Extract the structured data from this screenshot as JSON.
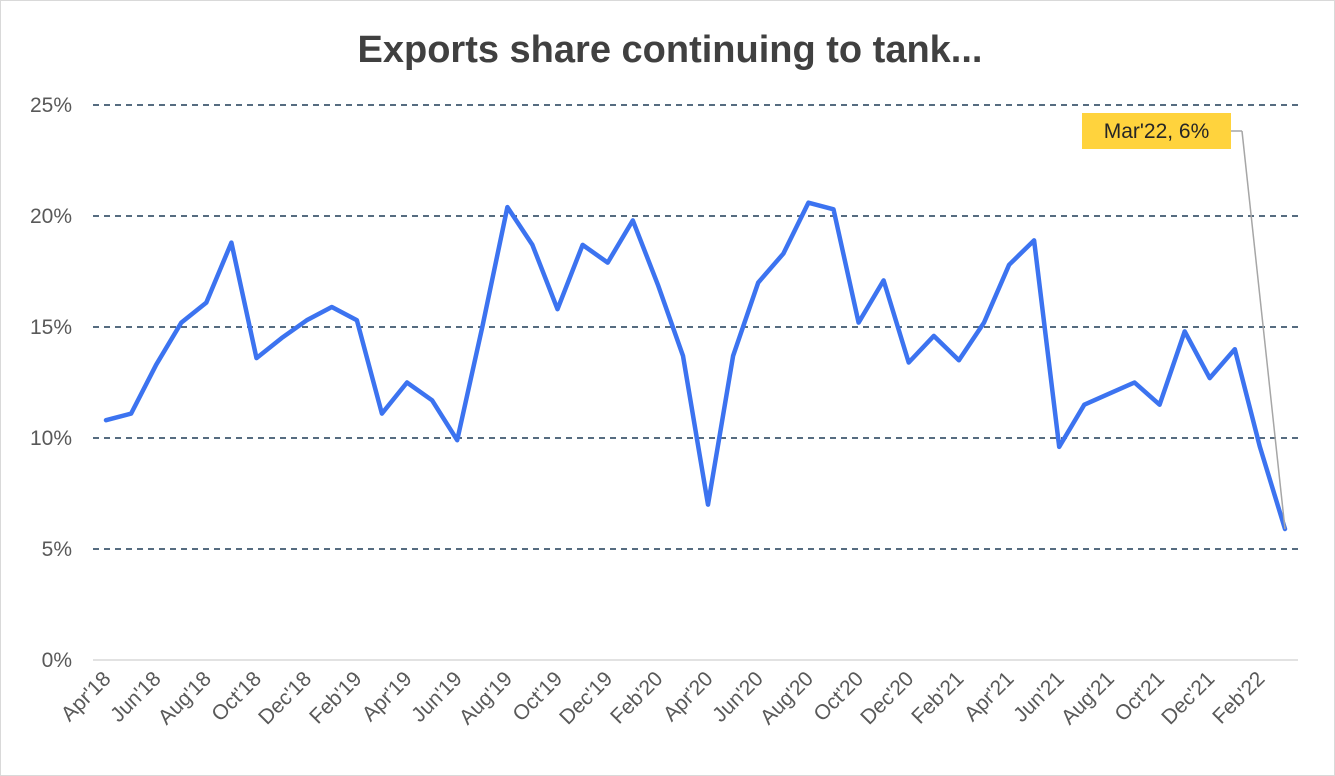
{
  "chart_data": {
    "type": "line",
    "title": "Exports share continuing to tank...",
    "xlabel": "",
    "ylabel": "",
    "ylim": [
      0,
      25
    ],
    "yticks": [
      "0%",
      "5%",
      "10%",
      "15%",
      "20%",
      "25%"
    ],
    "ytick_values": [
      0,
      5,
      10,
      15,
      20,
      25
    ],
    "grid": "horizontal dashed",
    "legend": "none",
    "x": [
      "Apr'18",
      "May'18",
      "Jun'18",
      "Jul'18",
      "Aug'18",
      "Sep'18",
      "Oct'18",
      "Nov'18",
      "Dec'18",
      "Jan'19",
      "Feb'19",
      "Mar'19",
      "Apr'19",
      "May'19",
      "Jun'19",
      "Jul'19",
      "Aug'19",
      "Sep'19",
      "Oct'19",
      "Nov'19",
      "Dec'19",
      "Jan'20",
      "Feb'20",
      "Mar'20",
      "Apr'20",
      "May'20",
      "Jun'20",
      "Jul'20",
      "Aug'20",
      "Sep'20",
      "Oct'20",
      "Nov'20",
      "Dec'20",
      "Jan'21",
      "Feb'21",
      "Mar'21",
      "Apr'21",
      "May'21",
      "Jun'21",
      "Jul'21",
      "Aug'21",
      "Sep'21",
      "Oct'21",
      "Nov'21",
      "Dec'21",
      "Jan'22",
      "Feb'22",
      "Mar'22"
    ],
    "x_tick_labels": [
      "Apr'18",
      "Jun'18",
      "Aug'18",
      "Oct'18",
      "Dec'18",
      "Feb'19",
      "Apr'19",
      "Jun'19",
      "Aug'19",
      "Oct'19",
      "Dec'19",
      "Feb'20",
      "Apr'20",
      "Jun'20",
      "Aug'20",
      "Oct'20",
      "Dec'20",
      "Feb'21",
      "Apr'21",
      "Jun'21",
      "Aug'21",
      "Oct'21",
      "Dec'21",
      "Feb'22"
    ],
    "series": [
      {
        "values": [
          10.8,
          11.1,
          13.3,
          15.2,
          16.1,
          18.8,
          13.6,
          14.5,
          15.3,
          15.9,
          15.3,
          11.1,
          12.5,
          11.7,
          9.9,
          15.0,
          20.4,
          18.7,
          15.8,
          18.7,
          17.9,
          19.8,
          16.9,
          13.7,
          7.0,
          13.7,
          17.0,
          18.3,
          20.6,
          20.3,
          15.2,
          17.1,
          13.4,
          14.6,
          13.5,
          15.2,
          17.8,
          18.9,
          9.6,
          11.5,
          12.0,
          12.5,
          11.5,
          14.8,
          12.7,
          14.0,
          9.6,
          5.9
        ],
        "color": "#3c73f0"
      }
    ],
    "annotation": {
      "text": "Mar'22, 6%",
      "target": "Mar'22",
      "background": "#ffd33d"
    },
    "colors": {
      "gridline": "#1f3b57",
      "axis": "#d9d9d9",
      "tick_text": "#595959",
      "title": "#404040"
    }
  }
}
